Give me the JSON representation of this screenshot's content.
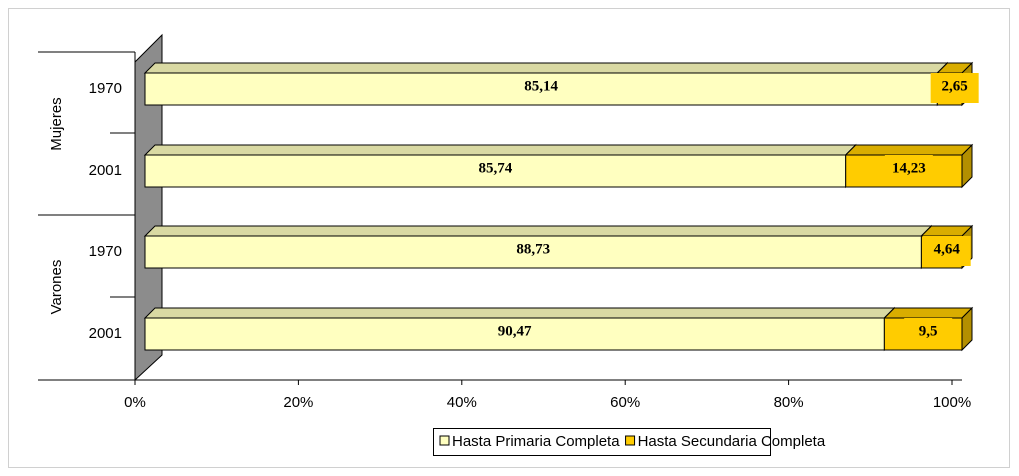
{
  "chart_data": {
    "type": "bar",
    "orientation": "horizontal",
    "stacking": "percent",
    "groups": [
      {
        "name": "Mujeres",
        "categories": [
          "1970",
          "2001"
        ]
      },
      {
        "name": "Varones",
        "categories": [
          "1970",
          "2001"
        ]
      }
    ],
    "series": [
      {
        "name": "Hasta Primaria Completa",
        "color": "#ffffc0",
        "values": [
          85.14,
          85.74,
          88.73,
          90.47
        ],
        "value_labels": [
          "85,14",
          "85,74",
          "88,73",
          "90,47"
        ]
      },
      {
        "name": "Hasta Secundaria Completa",
        "color": "#ffcc00",
        "values": [
          2.65,
          14.23,
          4.64,
          9.5
        ],
        "value_labels": [
          "2,65",
          "14,23",
          "4,64",
          "9,5"
        ]
      }
    ],
    "xlim": [
      0,
      100
    ],
    "xticks": [
      {
        "value": 0,
        "label": "0%"
      },
      {
        "value": 20,
        "label": "20%"
      },
      {
        "value": 40,
        "label": "40%"
      },
      {
        "value": 60,
        "label": "60%"
      },
      {
        "value": 80,
        "label": "80%"
      },
      {
        "value": 100,
        "label": "100%"
      }
    ],
    "legend": "bottom"
  }
}
